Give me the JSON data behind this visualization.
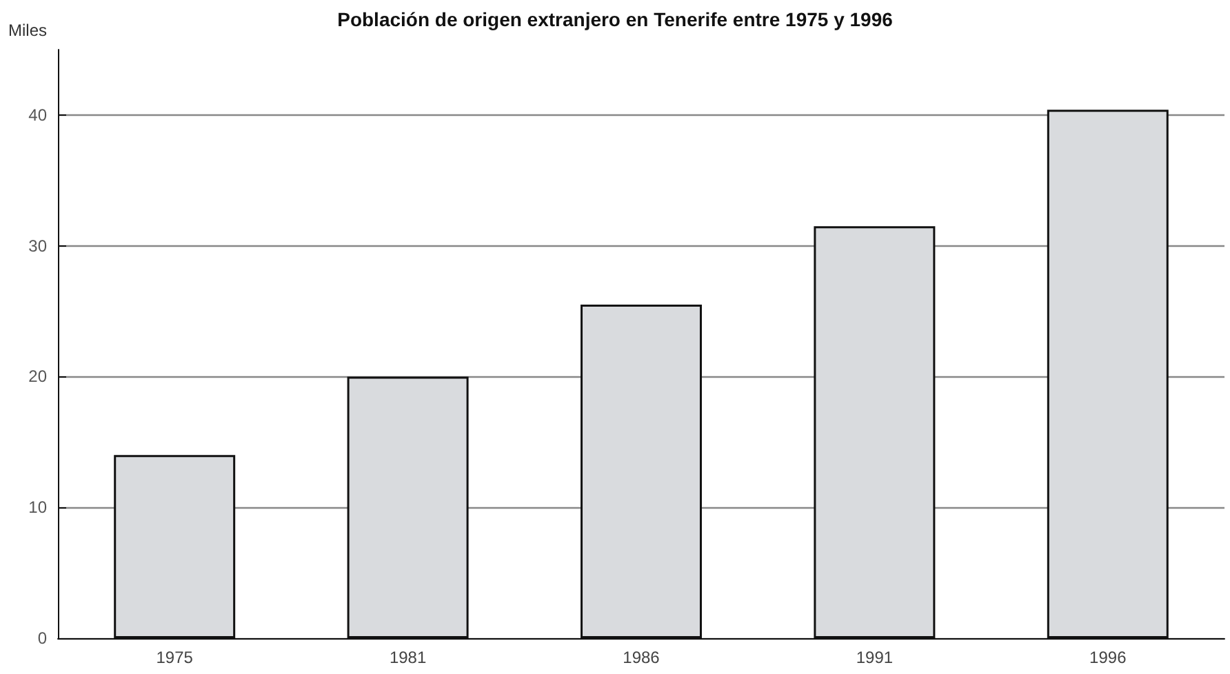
{
  "chart_data": {
    "type": "bar",
    "title": "Población de origen extranjero en Tenerife entre 1975 y 1996",
    "ylabel": "Miles",
    "categories": [
      "1975",
      "1981",
      "1986",
      "1991",
      "1996"
    ],
    "values": [
      14,
      20,
      25.5,
      31.5,
      40.4
    ],
    "color": "#d9dbde",
    "ylim": [
      0,
      45
    ],
    "yticks": [
      0,
      10,
      20,
      30,
      40
    ],
    "grid": "y"
  }
}
